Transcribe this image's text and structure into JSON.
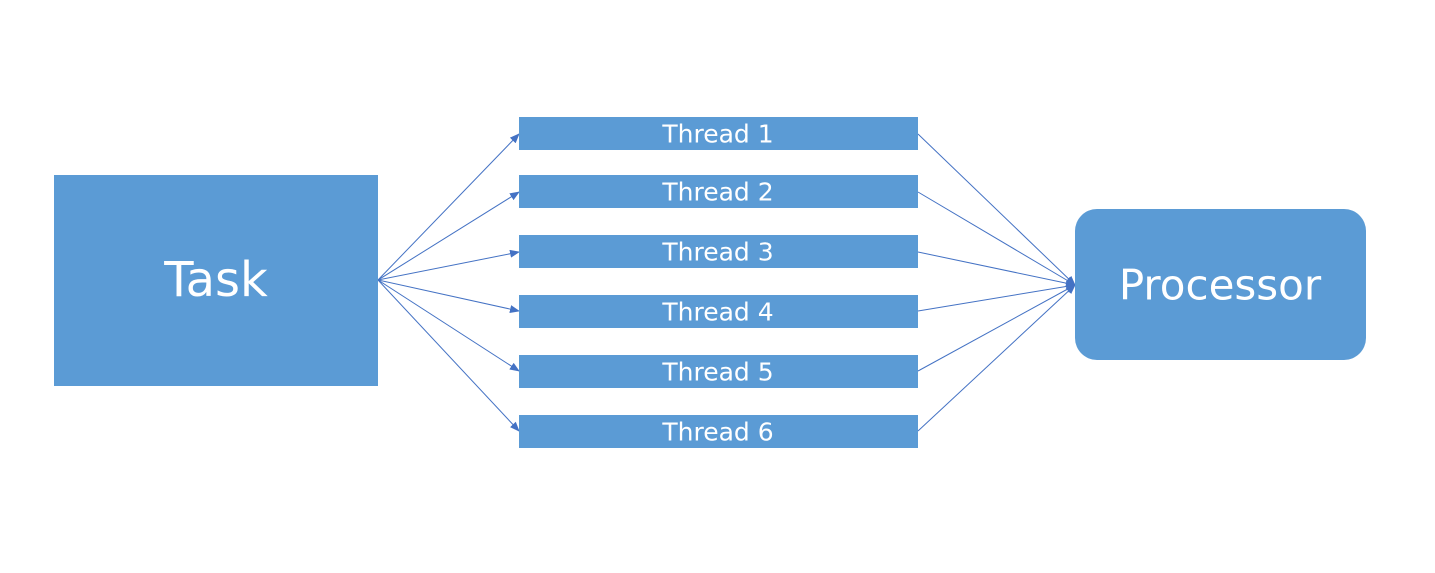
{
  "colors": {
    "node_fill": "#5b9bd5",
    "connector": "#4472c4",
    "label": "#ffffff",
    "background": "#ffffff"
  },
  "task": {
    "label": "Task"
  },
  "threads": [
    {
      "label": "Thread 1"
    },
    {
      "label": "Thread 2"
    },
    {
      "label": "Thread 3"
    },
    {
      "label": "Thread 4"
    },
    {
      "label": "Thread 5"
    },
    {
      "label": "Thread 6"
    }
  ],
  "processor": {
    "label": "Processor"
  }
}
